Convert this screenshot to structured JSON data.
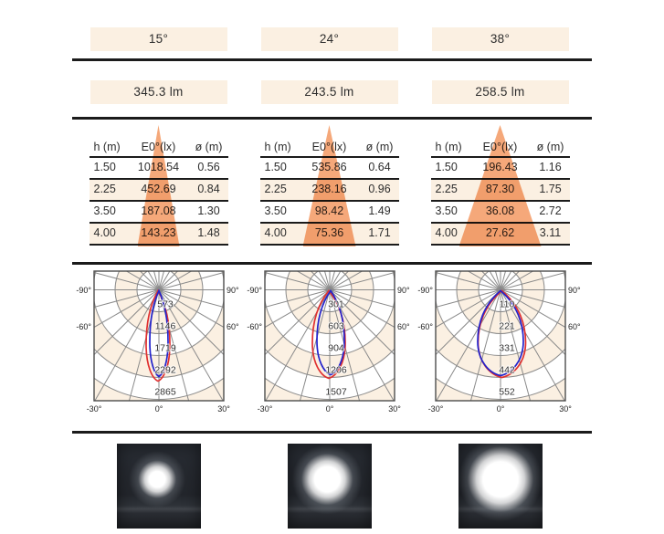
{
  "colors": {
    "cream": "#fbf0e2",
    "cone_orange": "#f5a87a",
    "ink": "#1b1b1b",
    "grid_gray": "#8a8a8a",
    "curve_red": "#e03030",
    "curve_blue": "#2323cc"
  },
  "columns": [
    {
      "beam_angle": "15°",
      "luminous_flux": "345.3 lm",
      "table": {
        "headers": [
          "h (m)",
          "E0°(lx)",
          "ø (m)"
        ],
        "rows": [
          [
            "1.50",
            "1018.54",
            "0.56"
          ],
          [
            "2.25",
            "452.69",
            "0.84"
          ],
          [
            "3.50",
            "187.08",
            "1.30"
          ],
          [
            "4.00",
            "143.23",
            "1.48"
          ]
        ]
      },
      "polar": {
        "ring_values": [
          "573",
          "1146",
          "1719",
          "2292",
          "2865"
        ],
        "angle_labels": [
          "-90°",
          "90°",
          "-60°",
          "60°",
          "-30°",
          "0°",
          "30°"
        ],
        "curves": {
          "blue": {
            "half_width": 10,
            "length": 95,
            "dx": 0
          },
          "red": {
            "half_width": 13,
            "length": 100,
            "dx": -1
          }
        }
      },
      "photo": {
        "beam_spot": "small"
      }
    },
    {
      "beam_angle": "24°",
      "luminous_flux": "243.5 lm",
      "table": {
        "headers": [
          "h (m)",
          "E0°(lx)",
          "ø (m)"
        ],
        "rows": [
          [
            "1.50",
            "535.86",
            "0.64"
          ],
          [
            "2.25",
            "238.16",
            "0.96"
          ],
          [
            "3.50",
            "98.42",
            "1.49"
          ],
          [
            "4.00",
            "75.36",
            "1.71"
          ]
        ]
      },
      "polar": {
        "ring_values": [
          "301",
          "603",
          "904",
          "1206",
          "1507"
        ],
        "angle_labels": [
          "-90°",
          "90°",
          "-60°",
          "60°",
          "-30°",
          "0°",
          "30°"
        ],
        "curves": {
          "blue": {
            "half_width": 15,
            "length": 93,
            "dx": 1
          },
          "red": {
            "half_width": 18,
            "length": 97,
            "dx": -1
          }
        }
      },
      "photo": {
        "beam_spot": "medium"
      }
    },
    {
      "beam_angle": "38°",
      "luminous_flux": "258.5 lm",
      "table": {
        "headers": [
          "h (m)",
          "E0°(lx)",
          "ø (m)"
        ],
        "rows": [
          [
            "1.50",
            "196.43",
            "1.16"
          ],
          [
            "2.25",
            "87.30",
            "1.75"
          ],
          [
            "3.50",
            "36.08",
            "2.72"
          ],
          [
            "4.00",
            "27.62",
            "3.11"
          ]
        ]
      },
      "polar": {
        "ring_values": [
          "110",
          "221",
          "331",
          "442",
          "552"
        ],
        "angle_labels": [
          "-90°",
          "90°",
          "-60°",
          "60°",
          "-30°",
          "0°",
          "30°"
        ],
        "curves": {
          "blue": {
            "half_width": 25,
            "length": 94,
            "dx": 0
          },
          "red": {
            "half_width": 26,
            "length": 96,
            "dx": 1.5
          }
        }
      },
      "photo": {
        "beam_spot": "large"
      }
    }
  ],
  "chart_data": [
    {
      "type": "polar",
      "title": "15° beam light distribution",
      "angle_ticks_deg": [
        -90,
        -60,
        -30,
        0,
        30,
        60,
        90
      ],
      "ring_values_cd": [
        573,
        1146,
        1719,
        2292,
        2865
      ],
      "series": [
        {
          "name": "red-plane",
          "color": "#e03030",
          "peak_cd_approx": 2390
        },
        {
          "name": "blue-plane",
          "color": "#2323cc",
          "peak_cd_approx": 2270
        }
      ]
    },
    {
      "type": "polar",
      "title": "24° beam light distribution",
      "angle_ticks_deg": [
        -90,
        -60,
        -30,
        0,
        30,
        60,
        90
      ],
      "ring_values_cd": [
        301,
        603,
        904,
        1206,
        1507
      ],
      "series": [
        {
          "name": "red-plane",
          "color": "#e03030",
          "peak_cd_approx": 1220
        },
        {
          "name": "blue-plane",
          "color": "#2323cc",
          "peak_cd_approx": 1170
        }
      ]
    },
    {
      "type": "polar",
      "title": "38° beam light distribution",
      "angle_ticks_deg": [
        -90,
        -60,
        -30,
        0,
        30,
        60,
        90
      ],
      "ring_values_cd": [
        110,
        221,
        331,
        442,
        552
      ],
      "series": [
        {
          "name": "red-plane",
          "color": "#e03030",
          "peak_cd_approx": 442
        },
        {
          "name": "blue-plane",
          "color": "#2323cc",
          "peak_cd_approx": 433
        }
      ]
    }
  ]
}
